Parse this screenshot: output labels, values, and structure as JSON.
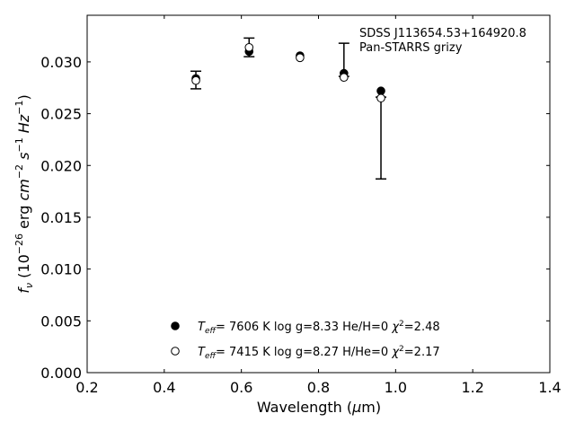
{
  "chart_data": {
    "type": "scatter",
    "xlabel": "Wavelength (μm)",
    "ylabel": "f_ν (10^-26 erg cm^-2 s^-1 Hz^-1)",
    "xlim": [
      0.2,
      1.4
    ],
    "ylim": [
      0.0,
      0.0345
    ],
    "xticks": [
      0.2,
      0.4,
      0.6,
      0.8,
      1.0,
      1.2,
      1.4
    ],
    "xtick_labels": [
      "0.2",
      "0.4",
      "0.6",
      "0.8",
      "1.0",
      "1.2",
      "1.4"
    ],
    "yticks": [
      0.0,
      0.005,
      0.01,
      0.015,
      0.02,
      0.025,
      0.03
    ],
    "ytick_labels": [
      "0.000",
      "0.005",
      "0.010",
      "0.015",
      "0.020",
      "0.025",
      "0.030"
    ],
    "grid": false,
    "annotations": [
      "SDSS J113654.53+164920.8",
      "Pan-STARRS grizy"
    ],
    "observed": {
      "x": [
        0.482,
        0.62,
        0.866,
        0.962
      ],
      "y": [
        0.0282,
        0.0314,
        0.0285,
        0.0265
      ],
      "yerr_low": [
        0.0274,
        0.0305,
        0.0286,
        0.0187
      ],
      "yerr_high": [
        0.0291,
        0.0323,
        0.0318,
        0.0266
      ]
    },
    "series": [
      {
        "name": "T_eff= 7606 K log g=8.33 He/H=0 χ²=2.48",
        "marker": "filled",
        "x": [
          0.482,
          0.62,
          0.752,
          0.866,
          0.962
        ],
        "y": [
          0.0284,
          0.031,
          0.0306,
          0.0289,
          0.0272
        ]
      },
      {
        "name": "T_eff= 7415 K log g=8.27 H/He=0 χ²=2.17",
        "marker": "open",
        "x": [
          0.482,
          0.62,
          0.752,
          0.866,
          0.962
        ],
        "y": [
          0.0282,
          0.0314,
          0.0304,
          0.0285,
          0.0265
        ]
      }
    ],
    "legend_position": "bottom-center",
    "legend": [
      {
        "teff": "7606 K",
        "logg": "log g=8.33",
        "comp": "He/H=0",
        "chi2": "=2.48"
      },
      {
        "teff": "7415 K",
        "logg": "log g=8.27",
        "comp": "H/He=0",
        "chi2": "=2.17"
      }
    ]
  }
}
